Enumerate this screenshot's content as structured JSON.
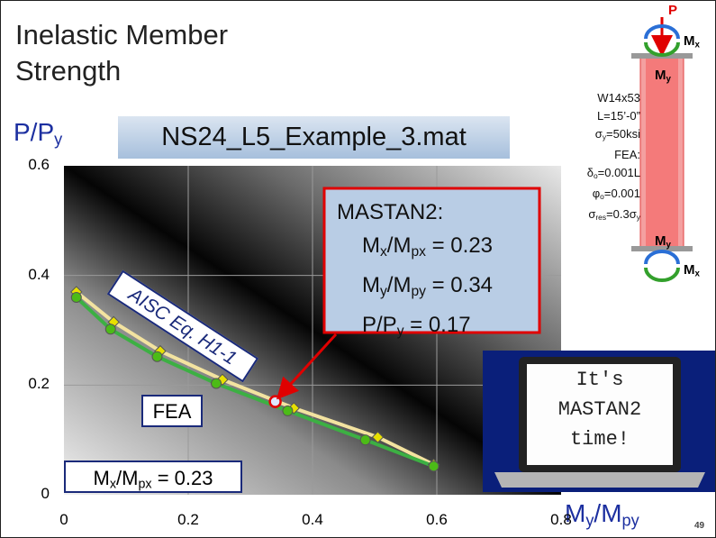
{
  "header": {
    "title": "Inelastic Member Strength",
    "file_name": "NS24_L5_Example_3.mat",
    "page_number": "49"
  },
  "chart_data": {
    "type": "line",
    "x_label": [
      {
        "text": "M"
      },
      {
        "sub": "y"
      },
      {
        "text": "/M"
      },
      {
        "sub": "py"
      }
    ],
    "y_label": [
      {
        "text": "P/P"
      },
      {
        "sub": "y"
      }
    ],
    "xlim": [
      0,
      0.8
    ],
    "ylim": [
      0,
      0.6
    ],
    "xticks": [
      0,
      0.2,
      0.4,
      0.6,
      0.8
    ],
    "yticks": [
      0,
      0.2,
      0.4,
      0.6
    ],
    "grid": true,
    "series": [
      {
        "name": "AISC Eq. H1-1",
        "color": "#f3e3a0",
        "marker": "diamond",
        "marker_color": "#e8e000",
        "x": [
          0.02,
          0.08,
          0.155,
          0.255,
          0.37,
          0.505,
          0.595
        ],
        "values": [
          0.37,
          0.315,
          0.262,
          0.21,
          0.158,
          0.105,
          0.055
        ]
      },
      {
        "name": "FEA",
        "color": "#3cb043",
        "marker": "circle",
        "marker_color": "#4cbb17",
        "x": [
          0.02,
          0.075,
          0.15,
          0.245,
          0.36,
          0.485,
          0.595
        ],
        "values": [
          0.36,
          0.302,
          0.252,
          0.203,
          0.153,
          0.1,
          0.052
        ]
      }
    ],
    "highlight": {
      "x": 0.34,
      "y": 0.17,
      "color": "#e00000"
    },
    "annotation": [
      [
        {
          "text": "MASTAN2:"
        }
      ],
      [
        {
          "text": "M"
        },
        {
          "sub": "x"
        },
        {
          "text": "/M"
        },
        {
          "sub": "px"
        },
        {
          "text": " = 0.23"
        }
      ],
      [
        {
          "text": "M"
        },
        {
          "sub": "y"
        },
        {
          "text": "/M"
        },
        {
          "sub": "py"
        },
        {
          "text": " = 0.34"
        }
      ],
      [
        {
          "text": "P/P"
        },
        {
          "sub": "y"
        },
        {
          "text": " = 0.17"
        }
      ]
    ],
    "constant_label": [
      {
        "text": "M"
      },
      {
        "sub": "x"
      },
      {
        "text": "/M"
      },
      {
        "sub": "px"
      },
      {
        "text": " = 0.23"
      }
    ]
  },
  "column": {
    "load": [
      {
        "text": "P"
      }
    ],
    "top_mx": [
      {
        "text": "M"
      },
      {
        "sub": "x"
      }
    ],
    "top_my": [
      {
        "text": "M"
      },
      {
        "sub": "y"
      }
    ],
    "bottom_my": [
      {
        "text": "M"
      },
      {
        "sub": "y"
      }
    ],
    "bottom_mx": [
      {
        "text": "M"
      },
      {
        "sub": "x"
      }
    ],
    "properties": [
      [
        {
          "text": "W14x53"
        }
      ],
      [
        {
          "text": "L=15’-0”"
        }
      ],
      [
        {
          "text": "σ"
        },
        {
          "sub": "y"
        },
        {
          "text": "=50ksi"
        }
      ],
      [
        {
          "text": "FEA:"
        }
      ],
      [
        {
          "text": "δ"
        },
        {
          "sub": "o"
        },
        {
          "text": "=0.001L"
        }
      ],
      [
        {
          "text": "φ"
        },
        {
          "sub": "o"
        },
        {
          "text": "=0.001"
        }
      ],
      [
        {
          "text": "σ"
        },
        {
          "sub": "res"
        },
        {
          "text": "=0.3σ"
        },
        {
          "sub": "y"
        }
      ]
    ]
  },
  "laptop": {
    "screen_lines": [
      "It's",
      "MASTAN2",
      "time!"
    ]
  }
}
